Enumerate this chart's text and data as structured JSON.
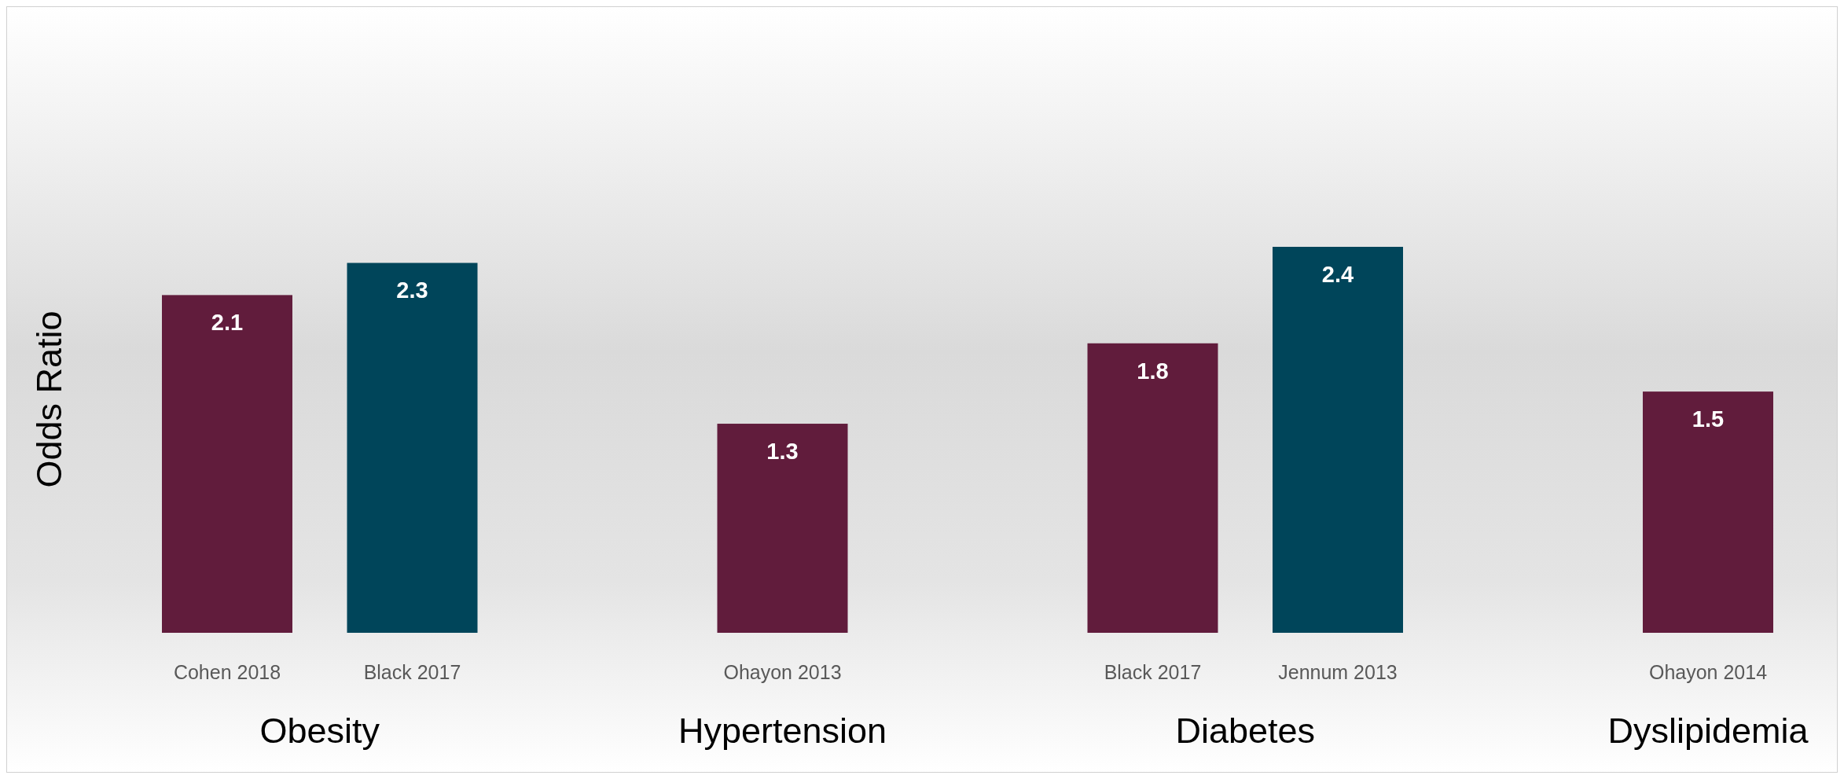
{
  "chart_data": {
    "type": "bar",
    "ylabel": "Odds Ratio",
    "categories": [
      "Cohen 2018",
      "Black 2017",
      null,
      "Ohayon 2013",
      null,
      "Black 2017",
      "Jennum 2013",
      null,
      "Ohayon 2014"
    ],
    "values": [
      2.1,
      2.3,
      null,
      1.3,
      null,
      1.8,
      2.4,
      null,
      1.5
    ],
    "colors": [
      "#611c3c",
      "#00455a",
      null,
      "#611c3c",
      null,
      "#611c3c",
      "#00455a",
      null,
      "#611c3c"
    ],
    "data_labels": true,
    "tick_labels": "x",
    "annotations": [
      "Obesity",
      "Hypertension",
      "Diabetes",
      "Dyslipidemia"
    ]
  }
}
